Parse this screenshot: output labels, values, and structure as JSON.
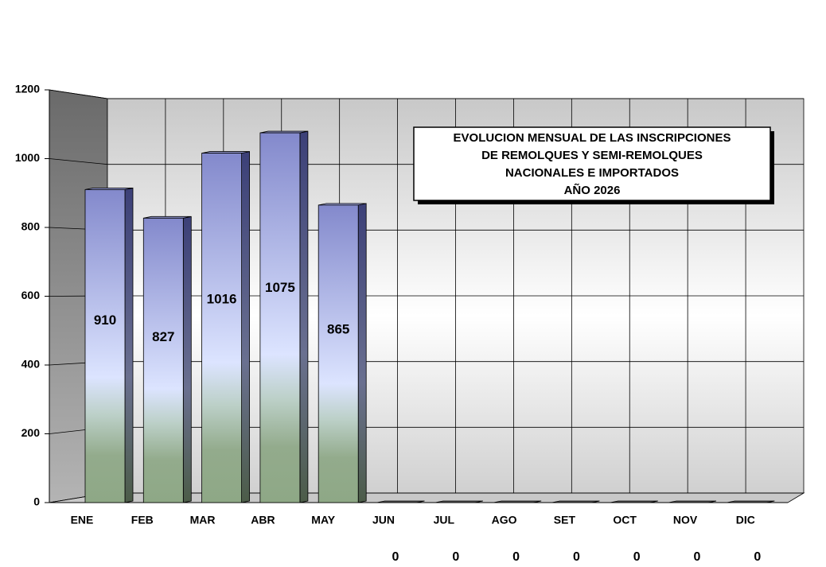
{
  "chart_data": {
    "type": "bar3d",
    "title": [
      "EVOLUCION MENSUAL DE LAS INSCRIPCIONES",
      "DE REMOLQUES Y SEMI-REMOLQUES",
      "NACIONALES E IMPORTADOS",
      "AÑO 2026"
    ],
    "categories": [
      "ENE",
      "FEB",
      "MAR",
      "ABR",
      "MAY",
      "JUN",
      "JUL",
      "AGO",
      "SET",
      "OCT",
      "NOV",
      "DIC"
    ],
    "values": [
      910,
      827,
      1016,
      1075,
      865,
      0,
      0,
      0,
      0,
      0,
      0,
      0
    ],
    "ylim": [
      0,
      1200
    ],
    "yticks": [
      0,
      200,
      400,
      600,
      800,
      1000,
      1200
    ],
    "grid": true
  }
}
